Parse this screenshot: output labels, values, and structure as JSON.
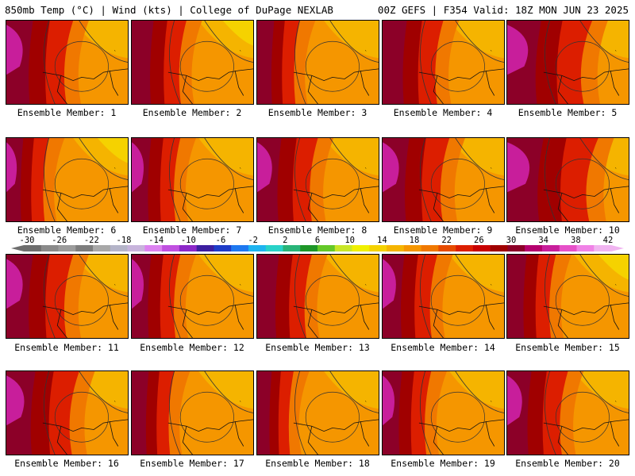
{
  "header": {
    "left": "850mb Temp (°C) | Wind (kts) | College of DuPage NEXLAB",
    "right": "00Z GEFS | F354 Valid: 18Z MON JUN 23 2025"
  },
  "members": [
    {
      "label": "Ensemble Member: 1"
    },
    {
      "label": "Ensemble Member: 2"
    },
    {
      "label": "Ensemble Member: 3"
    },
    {
      "label": "Ensemble Member: 4"
    },
    {
      "label": "Ensemble Member: 5"
    },
    {
      "label": "Ensemble Member: 6"
    },
    {
      "label": "Ensemble Member: 7"
    },
    {
      "label": "Ensemble Member: 8"
    },
    {
      "label": "Ensemble Member: 9"
    },
    {
      "label": "Ensemble Member: 10"
    },
    {
      "label": "Ensemble Member: 11"
    },
    {
      "label": "Ensemble Member: 12"
    },
    {
      "label": "Ensemble Member: 13"
    },
    {
      "label": "Ensemble Member: 14"
    },
    {
      "label": "Ensemble Member: 15"
    },
    {
      "label": "Ensemble Member: 16"
    },
    {
      "label": "Ensemble Member: 17"
    },
    {
      "label": "Ensemble Member: 18"
    },
    {
      "label": "Ensemble Member: 19"
    },
    {
      "label": "Ensemble Member: 20"
    }
  ],
  "colorbar": {
    "labels": [
      "-30",
      "-26",
      "-22",
      "-18",
      "-14",
      "-10",
      "-6",
      "-2",
      "2",
      "6",
      "10",
      "14",
      "18",
      "22",
      "26",
      "30",
      "34",
      "38",
      "42"
    ],
    "colors": [
      "#6e6e6e",
      "#8a8a8a",
      "#9c9c9c",
      "#7d7d7d",
      "#a8a8a8",
      "#b4b4c8",
      "#c8b4dc",
      "#dc82f0",
      "#c050e0",
      "#8c28c8",
      "#3c1ea0",
      "#1e3cc8",
      "#1e78f0",
      "#1eb4f0",
      "#28d2c8",
      "#28b478",
      "#1e9628",
      "#64c828",
      "#c8e628",
      "#f0f000",
      "#f5d200",
      "#f5b400",
      "#f59600",
      "#f07800",
      "#e64b00",
      "#dc1e00",
      "#c80000",
      "#a00000",
      "#8c0028",
      "#b4006e",
      "#c81e9b",
      "#e650c8",
      "#f082e6",
      "#f0b4f0"
    ]
  },
  "field_colors": {
    "magenta": "#c81e9b",
    "maroon": "#8c0028",
    "darkred": "#a00000",
    "red": "#dc1e00",
    "orangered": "#f07800",
    "orange": "#f59600",
    "lightorange": "#f5b400",
    "yellow": "#f5d200"
  }
}
